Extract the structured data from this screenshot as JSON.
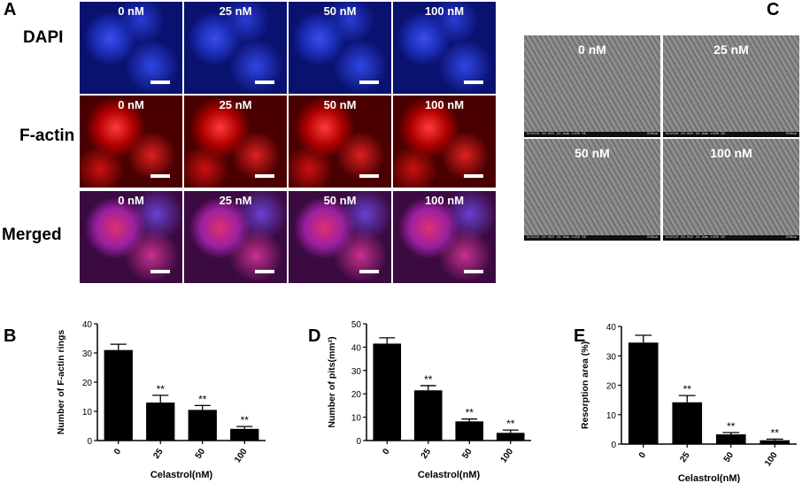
{
  "panels": {
    "A": {
      "letter": "A",
      "rows": [
        {
          "label": "DAPI",
          "tiles": [
            "0 nM",
            "25 nM",
            "50 nM",
            "100 nM"
          ],
          "color": "#1a2ecc"
        },
        {
          "label": "F-actin",
          "tiles": [
            "0 nM",
            "25 nM",
            "50 nM",
            "100 nM"
          ],
          "color": "#c81010"
        },
        {
          "label": "Merged",
          "tiles": [
            "0 nM",
            "25 nM",
            "50 nM",
            "100 nM"
          ],
          "color": "#8a2a9c"
        }
      ]
    },
    "C": {
      "letter": "C",
      "tiles": [
        "0 nM",
        "25 nM",
        "50 nM",
        "100 nM"
      ],
      "meta_left": [
        "SU1510 20.0kV 22.8mm x100 SE",
        "SU1510 20.0kV 22.9mm x100 SE",
        "SU1510 20.0kV 23.0mm x100 SE",
        "SU1510 20.0kV 23.0mm x100 SE"
      ],
      "meta_right": "500um"
    }
  },
  "chart_data": [
    {
      "panel": "B",
      "type": "bar",
      "categories": [
        "0",
        "25",
        "50",
        "100"
      ],
      "values": [
        31,
        13,
        10.5,
        4
      ],
      "errors": [
        2,
        2.5,
        1.5,
        0.8
      ],
      "significance": [
        "",
        "**",
        "**",
        "**"
      ],
      "xlabel": "Celastrol(nM)",
      "ylabel": "Number of F-actin rings",
      "ylim": [
        0,
        40
      ],
      "yticks": [
        0,
        10,
        20,
        30,
        40
      ],
      "grid": false
    },
    {
      "panel": "D",
      "type": "bar",
      "categories": [
        "0",
        "25",
        "50",
        "100"
      ],
      "values": [
        41.5,
        21.5,
        8.2,
        3.3
      ],
      "errors": [
        2.5,
        2,
        1,
        1.2
      ],
      "significance": [
        "",
        "**",
        "**",
        "**"
      ],
      "xlabel": "Celastrol(nM)",
      "ylabel": "Number of pits(mm²)",
      "ylim": [
        0,
        50
      ],
      "yticks": [
        0,
        10,
        20,
        30,
        40,
        50
      ],
      "grid": false
    },
    {
      "panel": "E",
      "type": "bar",
      "categories": [
        "0",
        "25",
        "50",
        "100"
      ],
      "values": [
        34.5,
        14.2,
        3.3,
        1.3
      ],
      "errors": [
        2.5,
        2.3,
        0.6,
        0.4
      ],
      "significance": [
        "",
        "**",
        "**",
        "**"
      ],
      "xlabel": "Celastrol(nM)",
      "ylabel": "Resorption area (%)",
      "ylim": [
        0,
        40
      ],
      "yticks": [
        0,
        10,
        20,
        30,
        40
      ],
      "grid": false
    }
  ]
}
